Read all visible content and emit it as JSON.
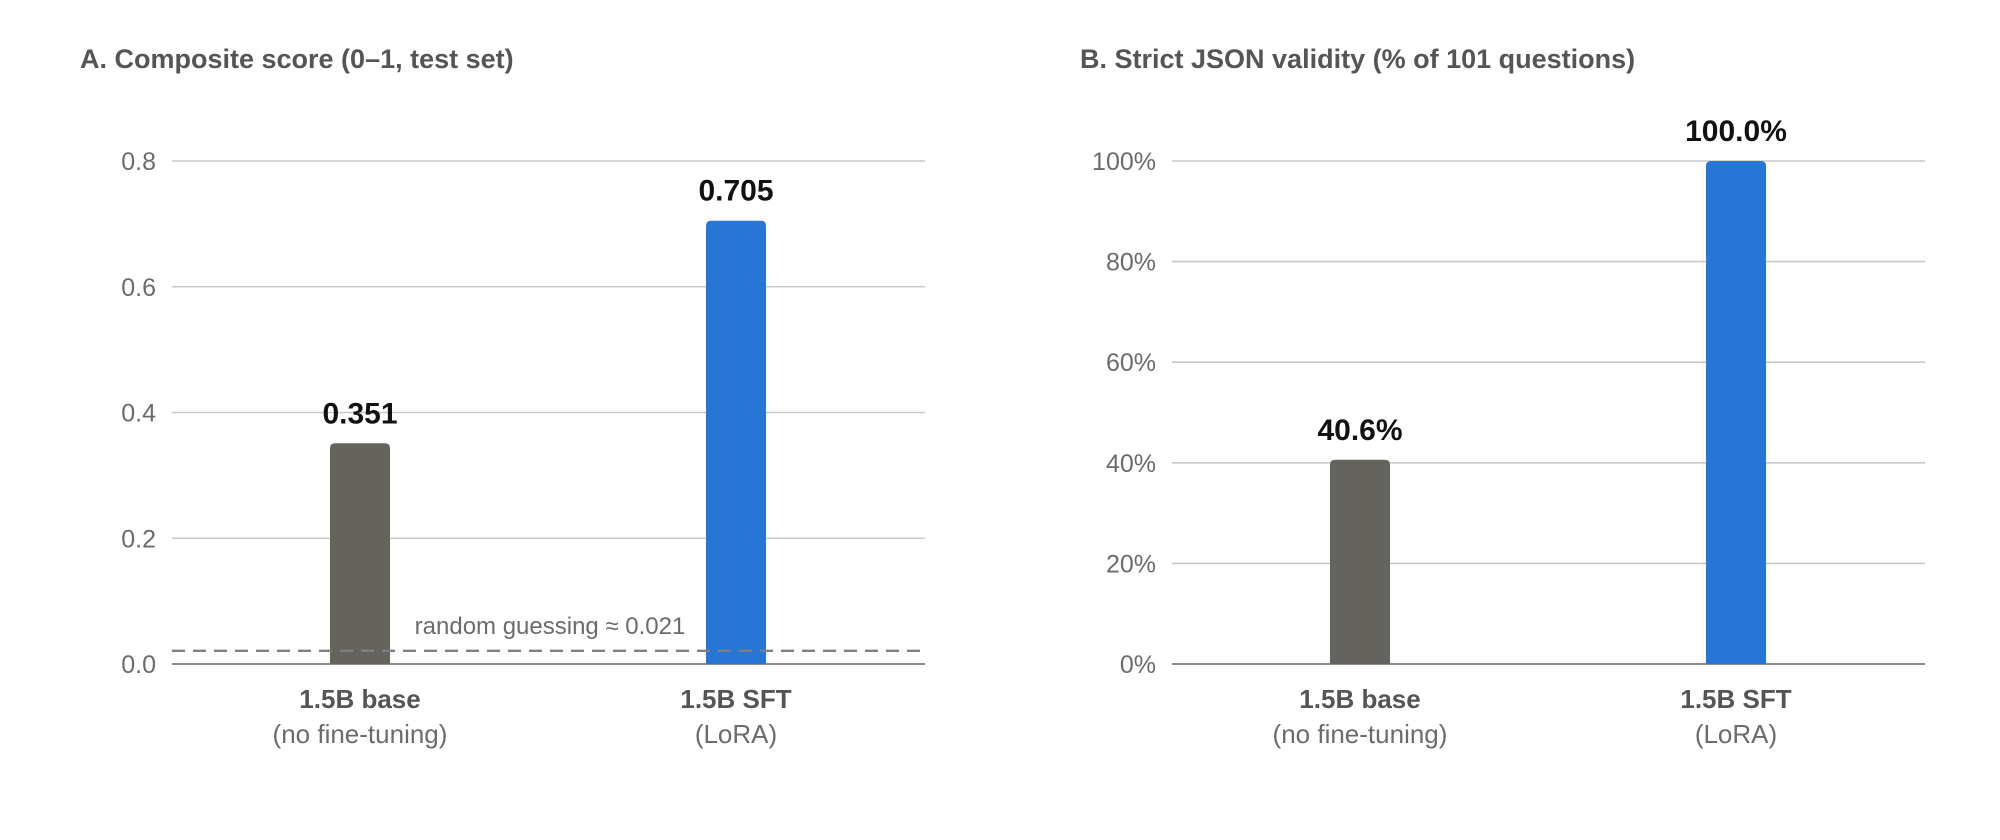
{
  "chart_data": [
    {
      "type": "bar",
      "title": "A. Composite score (0–1, test set)",
      "categories": [
        {
          "name": "1.5B base",
          "sub": "(no fine-tuning)"
        },
        {
          "name": "1.5B SFT",
          "sub": "(LoRA)"
        }
      ],
      "values": [
        0.351,
        0.705
      ],
      "value_labels": [
        "0.351",
        "0.705"
      ],
      "bar_colors": [
        "#65635e",
        "#2776d6"
      ],
      "ylim": [
        0,
        0.8
      ],
      "yticks": [
        0.0,
        0.2,
        0.4,
        0.6,
        0.8
      ],
      "ytick_labels": [
        "0.0",
        "0.2",
        "0.4",
        "0.6",
        "0.8"
      ],
      "grid": true,
      "reference_line": {
        "value": 0.021,
        "label": "random guessing ≈ 0.021",
        "style": "dashed"
      }
    },
    {
      "type": "bar",
      "title": "B. Strict JSON validity (% of 101 questions)",
      "categories": [
        {
          "name": "1.5B base",
          "sub": "(no fine-tuning)"
        },
        {
          "name": "1.5B SFT",
          "sub": "(LoRA)"
        }
      ],
      "values": [
        40.6,
        100.0
      ],
      "value_labels": [
        "40.6%",
        "100.0%"
      ],
      "bar_colors": [
        "#65635e",
        "#2776d6"
      ],
      "ylim": [
        0,
        100
      ],
      "yticks": [
        0,
        20,
        40,
        60,
        80,
        100
      ],
      "ytick_labels": [
        "0%",
        "20%",
        "40%",
        "60%",
        "80%",
        "100%"
      ],
      "grid": true
    }
  ]
}
